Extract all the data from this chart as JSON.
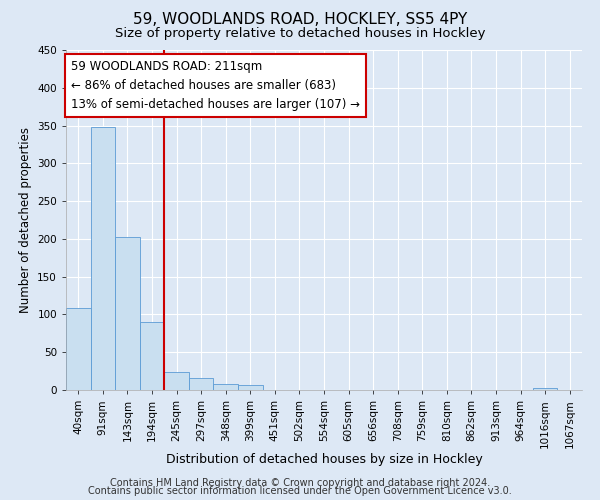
{
  "title": "59, WOODLANDS ROAD, HOCKLEY, SS5 4PY",
  "subtitle": "Size of property relative to detached houses in Hockley",
  "xlabel": "Distribution of detached houses by size in Hockley",
  "ylabel": "Number of detached properties",
  "bin_labels": [
    "40sqm",
    "91sqm",
    "143sqm",
    "194sqm",
    "245sqm",
    "297sqm",
    "348sqm",
    "399sqm",
    "451sqm",
    "502sqm",
    "554sqm",
    "605sqm",
    "656sqm",
    "708sqm",
    "759sqm",
    "810sqm",
    "862sqm",
    "913sqm",
    "964sqm",
    "1016sqm",
    "1067sqm"
  ],
  "bar_heights": [
    108,
    348,
    203,
    90,
    24,
    16,
    8,
    7,
    0,
    0,
    0,
    0,
    0,
    0,
    0,
    0,
    0,
    0,
    0,
    3,
    0
  ],
  "bar_color": "#c9dff0",
  "bar_edge_color": "#5b9bd5",
  "ylim": [
    0,
    450
  ],
  "yticks": [
    0,
    50,
    100,
    150,
    200,
    250,
    300,
    350,
    400,
    450
  ],
  "vline_color": "#cc0000",
  "vline_x": 3.5,
  "annotation_text": "59 WOODLANDS ROAD: 211sqm\n← 86% of detached houses are smaller (683)\n13% of semi-detached houses are larger (107) →",
  "annotation_box_color": "#ffffff",
  "annotation_box_edge_color": "#cc0000",
  "footnote_line1": "Contains HM Land Registry data © Crown copyright and database right 2024.",
  "footnote_line2": "Contains public sector information licensed under the Open Government Licence v3.0.",
  "background_color": "#dde8f5",
  "plot_background_color": "#dde8f5",
  "grid_color": "#ffffff",
  "title_fontsize": 11,
  "subtitle_fontsize": 9.5,
  "xlabel_fontsize": 9,
  "ylabel_fontsize": 8.5,
  "tick_fontsize": 7.5,
  "annotation_fontsize": 8.5,
  "footnote_fontsize": 7
}
